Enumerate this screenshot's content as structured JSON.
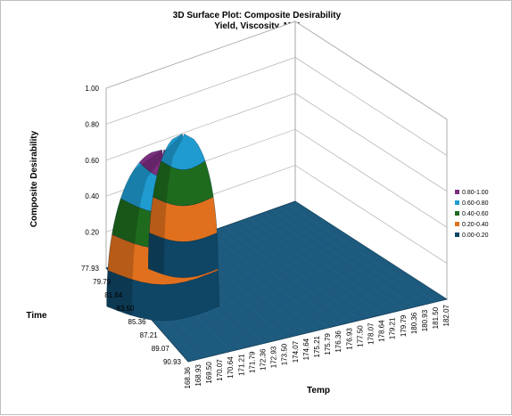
{
  "chart_data": {
    "type": "surface",
    "title": "3D Surface Plot: Composite Desirability",
    "subtitle": "Yield, Viscosity, MW",
    "xlabel": "Temp",
    "ylabel": "Time",
    "zlabel": "Composite Desirability",
    "zlim": [
      0,
      1
    ],
    "z_ticks": [
      "0.20",
      "0.40",
      "0.60",
      "0.80",
      "1.00"
    ],
    "time_ticks": [
      "77.93",
      "79.79",
      "81.64",
      "83.50",
      "85.36",
      "87.21",
      "89.07",
      "90.93"
    ],
    "temp_ticks": [
      "168.36",
      "168.93",
      "169.50",
      "170.07",
      "170.64",
      "171.21",
      "171.79",
      "172.36",
      "172.93",
      "173.50",
      "174.07",
      "174.64",
      "175.21",
      "175.79",
      "176.36",
      "176.93",
      "177.50",
      "178.07",
      "178.64",
      "179.21",
      "179.79",
      "180.36",
      "180.93",
      "181.50",
      "182.07"
    ],
    "legend_position": "right",
    "bands": [
      {
        "label": "0.80-1.00",
        "color": "#7b2d7e"
      },
      {
        "label": "0.60-0.80",
        "color": "#1f9bd0"
      },
      {
        "label": "0.40-0.60",
        "color": "#1e6b1e"
      },
      {
        "label": "0.20-0.40",
        "color": "#e0701e"
      },
      {
        "label": "0.00-0.20",
        "color": "#0f4565"
      }
    ],
    "peaks": [
      {
        "temp": 169.5,
        "time": 84.0,
        "desirability": 0.87
      },
      {
        "temp": 172.36,
        "time": 80.7,
        "desirability": 0.75
      }
    ]
  }
}
